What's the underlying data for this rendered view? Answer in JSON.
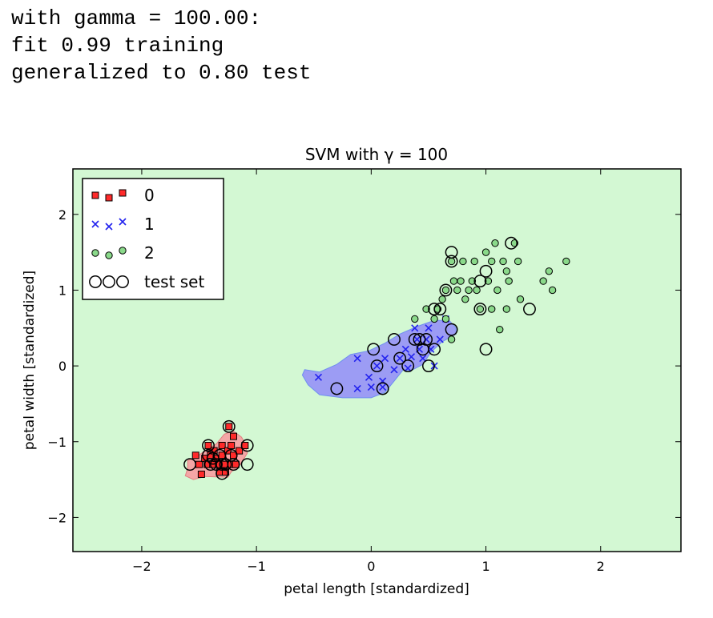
{
  "output_text": {
    "line1": "with gamma = 100.00:",
    "line2": "fit 0.99 training",
    "line3": "generalized to 0.80 test"
  },
  "chart_data": {
    "type": "scatter",
    "title": "SVM with γ = 100",
    "xlabel": "petal length [standardized]",
    "ylabel": "petal width [standardized]",
    "xlim": [
      -2.6,
      2.7
    ],
    "ylim": [
      -2.45,
      2.6
    ],
    "xticks": [
      -2,
      -1,
      0,
      1,
      2
    ],
    "yticks": [
      -2,
      -1,
      0,
      1,
      2
    ],
    "xtick_labels": [
      "−2",
      "−1",
      "0",
      "1",
      "2"
    ],
    "ytick_labels": [
      "−2",
      "−1",
      "0",
      "1",
      "2"
    ],
    "grid": false,
    "legend_position": "top-left",
    "colors": {
      "background_region": "#d3f8d3",
      "region_class0": "#f4a6a6",
      "region_class1": "#9c9cf4",
      "class0": "#ff2a2a",
      "class1": "#2222ee",
      "class2": "#8ad98a"
    },
    "decision_regions": [
      {
        "class": "0",
        "polygon": [
          [
            -1.6,
            -1.25
          ],
          [
            -1.52,
            -1.2
          ],
          [
            -1.45,
            -1.12
          ],
          [
            -1.35,
            -1.03
          ],
          [
            -1.28,
            -0.9
          ],
          [
            -1.2,
            -0.86
          ],
          [
            -1.13,
            -0.94
          ],
          [
            -1.1,
            -1.02
          ],
          [
            -1.08,
            -1.15
          ],
          [
            -1.14,
            -1.3
          ],
          [
            -1.22,
            -1.4
          ],
          [
            -1.25,
            -1.47
          ],
          [
            -1.45,
            -1.46
          ],
          [
            -1.55,
            -1.5
          ],
          [
            -1.62,
            -1.45
          ],
          [
            -1.6,
            -1.35
          ]
        ]
      },
      {
        "class": "1",
        "polygon": [
          [
            -0.58,
            -0.05
          ],
          [
            -0.45,
            -0.08
          ],
          [
            -0.3,
            0.02
          ],
          [
            -0.18,
            0.15
          ],
          [
            -0.02,
            0.2
          ],
          [
            0.12,
            0.3
          ],
          [
            0.25,
            0.42
          ],
          [
            0.4,
            0.52
          ],
          [
            0.55,
            0.6
          ],
          [
            0.68,
            0.6
          ],
          [
            0.74,
            0.5
          ],
          [
            0.74,
            0.42
          ],
          [
            0.62,
            0.32
          ],
          [
            0.52,
            0.18
          ],
          [
            0.45,
            0.02
          ],
          [
            0.35,
            -0.06
          ],
          [
            0.28,
            -0.05
          ],
          [
            0.2,
            -0.2
          ],
          [
            0.12,
            -0.35
          ],
          [
            0.0,
            -0.42
          ],
          [
            -0.25,
            -0.42
          ],
          [
            -0.45,
            -0.38
          ],
          [
            -0.55,
            -0.25
          ],
          [
            -0.6,
            -0.12
          ]
        ]
      }
    ],
    "series": [
      {
        "name": "0",
        "marker": "square",
        "points": [
          [
            -1.53,
            -1.18
          ],
          [
            -1.5,
            -1.3
          ],
          [
            -1.48,
            -1.43
          ],
          [
            -1.45,
            -1.22
          ],
          [
            -1.43,
            -1.3
          ],
          [
            -1.42,
            -1.05
          ],
          [
            -1.4,
            -1.18
          ],
          [
            -1.38,
            -1.3
          ],
          [
            -1.37,
            -1.12
          ],
          [
            -1.35,
            -1.22
          ],
          [
            -1.33,
            -1.3
          ],
          [
            -1.32,
            -1.4
          ],
          [
            -1.3,
            -1.05
          ],
          [
            -1.3,
            -1.18
          ],
          [
            -1.28,
            -1.3
          ],
          [
            -1.27,
            -1.4
          ],
          [
            -1.25,
            -1.12
          ],
          [
            -1.24,
            -0.8
          ],
          [
            -1.22,
            -1.05
          ],
          [
            -1.22,
            -1.3
          ],
          [
            -1.2,
            -1.18
          ],
          [
            -1.2,
            -0.93
          ],
          [
            -1.18,
            -1.3
          ],
          [
            -1.15,
            -1.12
          ],
          [
            -1.1,
            -1.05
          ]
        ]
      },
      {
        "name": "1",
        "marker": "x",
        "points": [
          [
            -0.46,
            -0.15
          ],
          [
            -0.12,
            0.1
          ],
          [
            -0.12,
            -0.3
          ],
          [
            -0.02,
            -0.15
          ],
          [
            0.05,
            0.0
          ],
          [
            0.1,
            -0.2
          ],
          [
            0.12,
            0.1
          ],
          [
            0.2,
            -0.05
          ],
          [
            0.25,
            0.1
          ],
          [
            0.3,
            0.22
          ],
          [
            0.32,
            -0.03
          ],
          [
            0.35,
            0.12
          ],
          [
            0.38,
            0.5
          ],
          [
            0.4,
            0.35
          ],
          [
            0.42,
            0.22
          ],
          [
            0.45,
            0.1
          ],
          [
            0.48,
            0.35
          ],
          [
            0.5,
            0.5
          ],
          [
            0.52,
            0.22
          ],
          [
            0.55,
            0.0
          ],
          [
            0.6,
            0.35
          ],
          [
            0.65,
            0.62
          ],
          [
            0.1,
            -0.28
          ],
          [
            0.0,
            -0.28
          ]
        ]
      },
      {
        "name": "2",
        "marker": "circle",
        "points": [
          [
            0.38,
            0.62
          ],
          [
            0.48,
            0.75
          ],
          [
            0.55,
            0.62
          ],
          [
            0.58,
            0.75
          ],
          [
            0.62,
            0.88
          ],
          [
            0.65,
            1.0
          ],
          [
            0.7,
            1.38
          ],
          [
            0.72,
            1.12
          ],
          [
            0.75,
            1.0
          ],
          [
            0.78,
            1.12
          ],
          [
            0.8,
            1.38
          ],
          [
            0.82,
            0.88
          ],
          [
            0.85,
            1.0
          ],
          [
            0.88,
            1.12
          ],
          [
            0.9,
            1.38
          ],
          [
            0.92,
            1.0
          ],
          [
            0.95,
            0.75
          ],
          [
            1.0,
            1.5
          ],
          [
            1.02,
            1.12
          ],
          [
            1.05,
            0.75
          ],
          [
            1.05,
            1.38
          ],
          [
            1.08,
            1.62
          ],
          [
            1.1,
            1.0
          ],
          [
            1.12,
            0.48
          ],
          [
            1.15,
            1.38
          ],
          [
            1.18,
            1.25
          ],
          [
            1.18,
            0.75
          ],
          [
            1.2,
            1.12
          ],
          [
            1.25,
            1.62
          ],
          [
            1.28,
            1.38
          ],
          [
            1.3,
            0.88
          ],
          [
            1.5,
            1.12
          ],
          [
            1.55,
            1.25
          ],
          [
            1.58,
            1.0
          ],
          [
            1.7,
            1.38
          ],
          [
            0.65,
            0.62
          ],
          [
            0.7,
            0.35
          ]
        ]
      },
      {
        "name": "test set",
        "marker": "open-circle",
        "points": [
          [
            -1.58,
            -1.3
          ],
          [
            -1.42,
            -1.05
          ],
          [
            -1.42,
            -1.18
          ],
          [
            -1.4,
            -1.3
          ],
          [
            -1.38,
            -1.22
          ],
          [
            -1.35,
            -1.3
          ],
          [
            -1.32,
            -1.18
          ],
          [
            -1.3,
            -1.3
          ],
          [
            -1.3,
            -1.42
          ],
          [
            -1.27,
            -1.3
          ],
          [
            -1.24,
            -0.8
          ],
          [
            -1.22,
            -1.18
          ],
          [
            -1.2,
            -1.3
          ],
          [
            -1.08,
            -1.05
          ],
          [
            -1.08,
            -1.3
          ],
          [
            -0.3,
            -0.3
          ],
          [
            0.02,
            0.22
          ],
          [
            0.05,
            0.0
          ],
          [
            0.1,
            -0.3
          ],
          [
            0.2,
            0.35
          ],
          [
            0.25,
            0.1
          ],
          [
            0.32,
            0.0
          ],
          [
            0.38,
            0.35
          ],
          [
            0.42,
            0.35
          ],
          [
            0.45,
            0.22
          ],
          [
            0.48,
            0.35
          ],
          [
            0.5,
            0.0
          ],
          [
            0.55,
            0.22
          ],
          [
            0.6,
            0.75
          ],
          [
            0.65,
            1.0
          ],
          [
            0.7,
            1.5
          ],
          [
            0.7,
            1.38
          ],
          [
            0.7,
            0.48
          ],
          [
            0.95,
            0.75
          ],
          [
            0.95,
            1.12
          ],
          [
            1.0,
            1.25
          ],
          [
            1.0,
            0.22
          ],
          [
            1.22,
            1.62
          ],
          [
            1.38,
            0.75
          ],
          [
            0.55,
            0.75
          ]
        ]
      }
    ],
    "legend": [
      {
        "label": "0",
        "marker": "square"
      },
      {
        "label": "1",
        "marker": "x"
      },
      {
        "label": "2",
        "marker": "circle"
      },
      {
        "label": "test set",
        "marker": "open-circle"
      }
    ]
  }
}
